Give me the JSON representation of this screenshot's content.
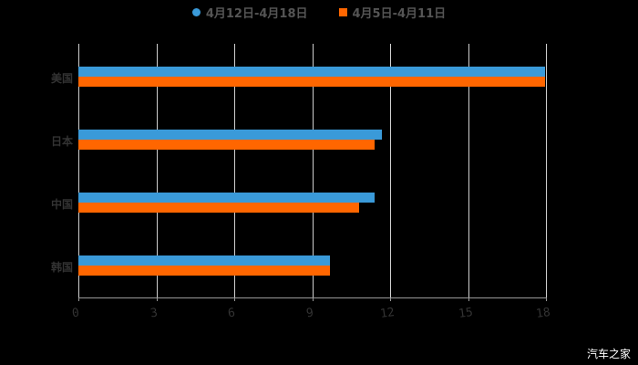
{
  "chart_data": {
    "type": "bar",
    "orientation": "horizontal",
    "title": "",
    "categories": [
      "美国",
      "日本",
      "中国",
      "韩国"
    ],
    "series": [
      {
        "name": "4月12日-4月18日",
        "color": "#3a9ad9",
        "values": [
          17.95,
          11.68,
          11.4,
          9.68
        ]
      },
      {
        "name": "4月5日-4月11日",
        "color": "#ff6600",
        "values": [
          17.95,
          11.4,
          10.8,
          9.68
        ]
      }
    ],
    "xlabel": "",
    "ylabel": "",
    "xlim": [
      0,
      18
    ],
    "xticks": [
      "0",
      "3",
      "6",
      "9",
      "12",
      "15",
      "18"
    ],
    "grid": true,
    "legend_position": "top"
  },
  "legend": [
    {
      "label": "4月12日-4月18日",
      "color": "#3a9ad9",
      "shape": "circle"
    },
    {
      "label": "4月5日-4月11日",
      "color": "#ff6600",
      "shape": "square"
    }
  ],
  "watermark": "汽车之家"
}
